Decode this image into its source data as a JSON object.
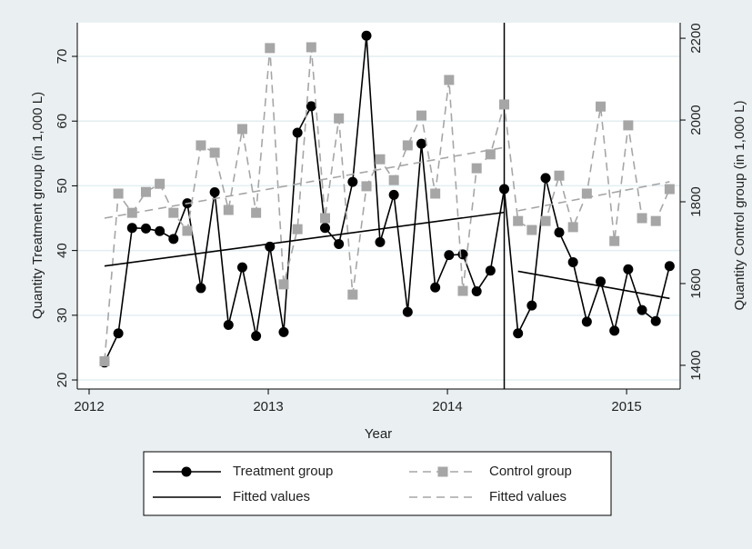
{
  "chart_data": {
    "type": "line",
    "x_label": "Year",
    "y_label": "Quantity Treatment group (in 1,000 L)",
    "y2_label": "Quantity Control group (in 1,000 L)",
    "xlim": [
      2011.934,
      2015.299
    ],
    "xticks": [
      2012,
      2013,
      2014,
      2015
    ],
    "ylim": [
      18.6,
      75.2
    ],
    "yticks": [
      20,
      30,
      40,
      50,
      60,
      70
    ],
    "y2lim": [
      1342,
      2238
    ],
    "y2ticks": [
      1400,
      1600,
      1800,
      2000,
      2200
    ],
    "grid": true,
    "vline": 2014.317,
    "series": [
      {
        "name": "Treatment group",
        "color": "#000000",
        "marker": "circle",
        "dash": false,
        "x": [
          2012.086,
          2012.163,
          2012.24,
          2012.317,
          2012.394,
          2012.471,
          2012.548,
          2012.624,
          2012.701,
          2012.778,
          2012.855,
          2012.932,
          2013.009,
          2013.086,
          2013.163,
          2013.24,
          2013.317,
          2013.394,
          2013.471,
          2013.548,
          2013.624,
          2013.701,
          2013.778,
          2013.855,
          2013.932,
          2014.009,
          2014.086,
          2014.163,
          2014.24,
          2014.317,
          2014.394,
          2014.471,
          2014.548,
          2014.624,
          2014.701,
          2014.778,
          2014.855,
          2014.932,
          2015.009,
          2015.086,
          2015.163,
          2015.24
        ],
        "values": [
          22.7,
          27.2,
          43.5,
          43.4,
          43.0,
          41.8,
          47.3,
          34.2,
          49.0,
          28.5,
          37.4,
          26.8,
          40.6,
          27.4,
          58.2,
          62.3,
          43.5,
          41.0,
          50.6,
          73.2,
          41.3,
          48.6,
          30.5,
          56.5,
          34.3,
          39.3,
          39.4,
          33.7,
          36.9,
          49.5,
          27.2,
          31.5,
          51.2,
          42.8,
          38.2,
          29.0,
          35.2,
          27.6,
          37.1,
          30.8,
          29.1,
          37.6
        ]
      },
      {
        "name": "Control group",
        "color": "#a6a6a6",
        "marker": "square",
        "dash": true,
        "axis": "y2",
        "x": [
          2012.086,
          2012.163,
          2012.24,
          2012.317,
          2012.394,
          2012.471,
          2012.548,
          2012.624,
          2012.701,
          2012.778,
          2012.855,
          2012.932,
          2013.009,
          2013.086,
          2013.163,
          2013.24,
          2013.317,
          2013.394,
          2013.471,
          2013.548,
          2013.624,
          2013.701,
          2013.778,
          2013.855,
          2013.932,
          2014.009,
          2014.086,
          2014.163,
          2014.24,
          2014.317,
          2014.394,
          2014.471,
          2014.548,
          2014.624,
          2014.701,
          2014.778,
          2014.855,
          2014.932,
          2015.009,
          2015.086,
          2015.163,
          2015.24
        ],
        "values": [
          1410,
          1820,
          1773,
          1824,
          1844,
          1773,
          1729,
          1938,
          1920,
          1780,
          1978,
          1773,
          2176,
          1598,
          1733,
          2178,
          1760,
          2004,
          1573,
          1838,
          1904,
          1853,
          1938,
          2011,
          1820,
          2098,
          1582,
          1882,
          1916,
          2038,
          1753,
          1731,
          1753,
          1864,
          1738,
          1820,
          2033,
          1704,
          1987,
          1760,
          1753,
          1831
        ]
      },
      {
        "name": "Fitted values",
        "color": "#000000",
        "marker": null,
        "dash": false,
        "x": [
          2012.086,
          2014.317,
          null,
          2014.394,
          2015.24
        ],
        "values": [
          37.6,
          45.9,
          null,
          36.8,
          32.6
        ]
      },
      {
        "name": "Fitted values",
        "color": "#a6a6a6",
        "marker": null,
        "dash": true,
        "axis": "y2",
        "x": [
          2012.086,
          2014.317,
          null,
          2014.394,
          2015.24
        ],
        "values": [
          1760,
          1933,
          null,
          1778,
          1849
        ]
      }
    ]
  }
}
